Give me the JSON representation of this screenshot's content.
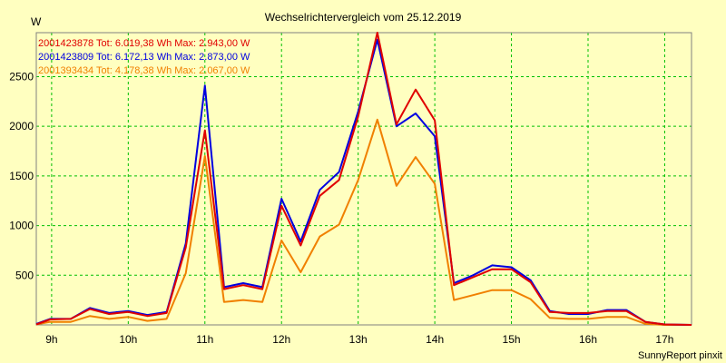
{
  "chart_data": {
    "type": "line",
    "title": "Wechselrichtervergleich vom 25.12.2019",
    "ylabel": "W",
    "xlabel": "",
    "credit": "SunnyReport pinxit",
    "ylim": [
      0,
      2943
    ],
    "xlim": [
      8.8,
      17.35
    ],
    "x_ticks": [
      9,
      10,
      11,
      12,
      13,
      14,
      15,
      16,
      17
    ],
    "x_tick_labels": [
      "9h",
      "10h",
      "11h",
      "12h",
      "13h",
      "14h",
      "15h",
      "16h",
      "17h"
    ],
    "y_ticks": [
      500,
      1000,
      1500,
      2000,
      2500
    ],
    "y_tick_labels": [
      "500",
      "1000",
      "1500",
      "2000",
      "2500"
    ],
    "grid": true,
    "legend_position": "top-left",
    "x": [
      8.8,
      8.98,
      9.25,
      9.5,
      9.75,
      10.0,
      10.25,
      10.5,
      10.75,
      11.0,
      11.25,
      11.5,
      11.75,
      12.0,
      12.25,
      12.5,
      12.75,
      13.0,
      13.25,
      13.5,
      13.75,
      14.0,
      14.25,
      14.5,
      14.75,
      15.0,
      15.25,
      15.5,
      15.75,
      16.0,
      16.25,
      16.5,
      16.75,
      17.0,
      17.35
    ],
    "series": [
      {
        "name": "2001423878",
        "legend_text": "2001423878 Tot: 6.019,38 Wh Max: 2.943,00 W",
        "color": "#e00000",
        "values": [
          5,
          55,
          60,
          160,
          110,
          130,
          90,
          120,
          780,
          1960,
          360,
          400,
          360,
          1200,
          800,
          1300,
          1460,
          2100,
          2943,
          2020,
          2370,
          2060,
          400,
          480,
          560,
          560,
          430,
          130,
          120,
          120,
          140,
          140,
          30,
          5,
          0
        ]
      },
      {
        "name": "2001423809",
        "legend_text": "2001423809 Tot: 6.172,13 Wh Max: 2.873,00 W",
        "color": "#0000e0",
        "values": [
          10,
          60,
          60,
          170,
          120,
          140,
          100,
          130,
          820,
          2410,
          380,
          420,
          380,
          1270,
          840,
          1360,
          1540,
          2150,
          2873,
          2000,
          2130,
          1900,
          420,
          500,
          600,
          580,
          450,
          140,
          110,
          110,
          150,
          150,
          30,
          5,
          0
        ]
      },
      {
        "name": "2001393434",
        "legend_text": "2001393434 Tot: 4.178,38 Wh Max: 2.067,00 W",
        "color": "#f08000",
        "values": [
          5,
          30,
          30,
          90,
          60,
          80,
          40,
          60,
          520,
          1700,
          230,
          250,
          230,
          850,
          530,
          890,
          1010,
          1460,
          2067,
          1400,
          1690,
          1420,
          250,
          300,
          350,
          350,
          260,
          70,
          60,
          60,
          80,
          80,
          10,
          0,
          0
        ]
      }
    ]
  }
}
